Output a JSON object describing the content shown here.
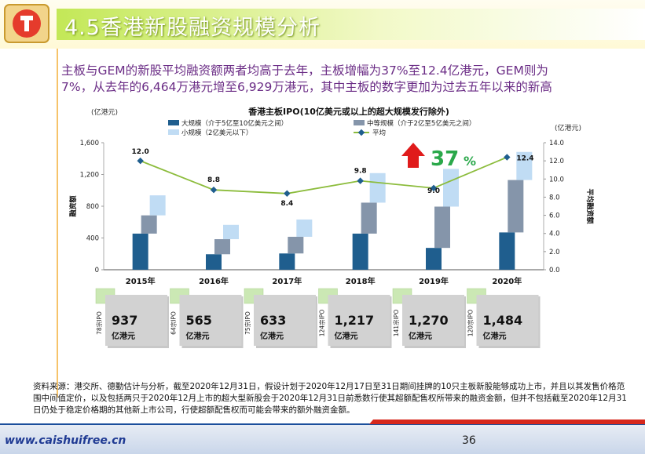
{
  "page": {
    "title": "4.5香港新股融资规模分析",
    "summary_line1": "主板与GEM的新股平均融资额两者均高于去年，主板增幅为37%至12.4亿港元，GEM则为",
    "summary_line2": "7%，从去年的6,464万港元增至6,929万港元，其中主板的数字更加为过去五年以来的新高",
    "source_note": "资料来源：港交所、德勤估计与分析，截至2020年12月31日，假设计划于2020年12月17日至31日期间挂牌的10只主板新股能够成功上市，并且以其发售价格范围中间值定价，以及包括两只于2020年12月上市的超大型新股会于2020年12月31日前悉数行使其超额配售权所带来的融资金额，但并不包括截至2020年12月31日仍处于稳定价格期的其他新上市公司，行使超额配售权而可能会带来的额外融资金额。",
    "url": "www.caishuifree.cn",
    "page_number": "36"
  },
  "chart_data": {
    "type": "bar",
    "title": "香港主板IPO(10亿美元或以上的超大规模发行除外)",
    "left_axis_unit": "(亿港元)",
    "right_axis_unit": "(亿港元)",
    "ylabel": "融资额",
    "y2label": "平均融资额",
    "ylim": [
      0,
      1600
    ],
    "y2lim": [
      0,
      14
    ],
    "yticks": [
      "0",
      "400",
      "800",
      "1,200",
      "1,600"
    ],
    "y2ticks": [
      "0.0",
      "2.0",
      "4.0",
      "6.0",
      "8.0",
      "10.0",
      "12.0",
      "14.0"
    ],
    "categories": [
      "2015年",
      "2016年",
      "2017年",
      "2018年",
      "2019年",
      "2020年"
    ],
    "series": [
      {
        "name": "大规模（介于5亿至10亿美元之间）",
        "color": "#1f5e8e",
        "values": [
          455,
          195,
          205,
          455,
          275,
          470
        ]
      },
      {
        "name": "中等规模（介于2亿至5亿美元之间）",
        "color": "#8595aa",
        "values": [
          230,
          190,
          210,
          390,
          520,
          660
        ]
      },
      {
        "name": "小规模（2亿美元以下）",
        "color": "#c0dcf4",
        "values": [
          252,
          180,
          218,
          372,
          475,
          354
        ]
      }
    ],
    "average": {
      "name": "平均",
      "color": "#8cbc3c",
      "values": [
        12.0,
        8.8,
        8.4,
        9.8,
        9.0,
        12.4
      ],
      "labels": [
        "12.0",
        "8.8",
        "8.4",
        "9.8",
        "9.0",
        "12.4"
      ]
    },
    "growth_label_number": "37",
    "growth_label_pct": "%",
    "growth_color": "#2aa84a",
    "arrow_color": "#e01b1b",
    "ipo_boxes": [
      {
        "count": "78宗IPO",
        "total": "937",
        "unit": "亿港元"
      },
      {
        "count": "64宗IPO",
        "total": "565",
        "unit": "亿港元"
      },
      {
        "count": "75宗IPO",
        "total": "633",
        "unit": "亿港元"
      },
      {
        "count": "124宗IPO",
        "total": "1,217",
        "unit": "亿港元"
      },
      {
        "count": "141宗IPO",
        "total": "1,270",
        "unit": "亿港元"
      },
      {
        "count": "120宗IPO",
        "total": "1,484",
        "unit": "亿港元"
      }
    ]
  }
}
